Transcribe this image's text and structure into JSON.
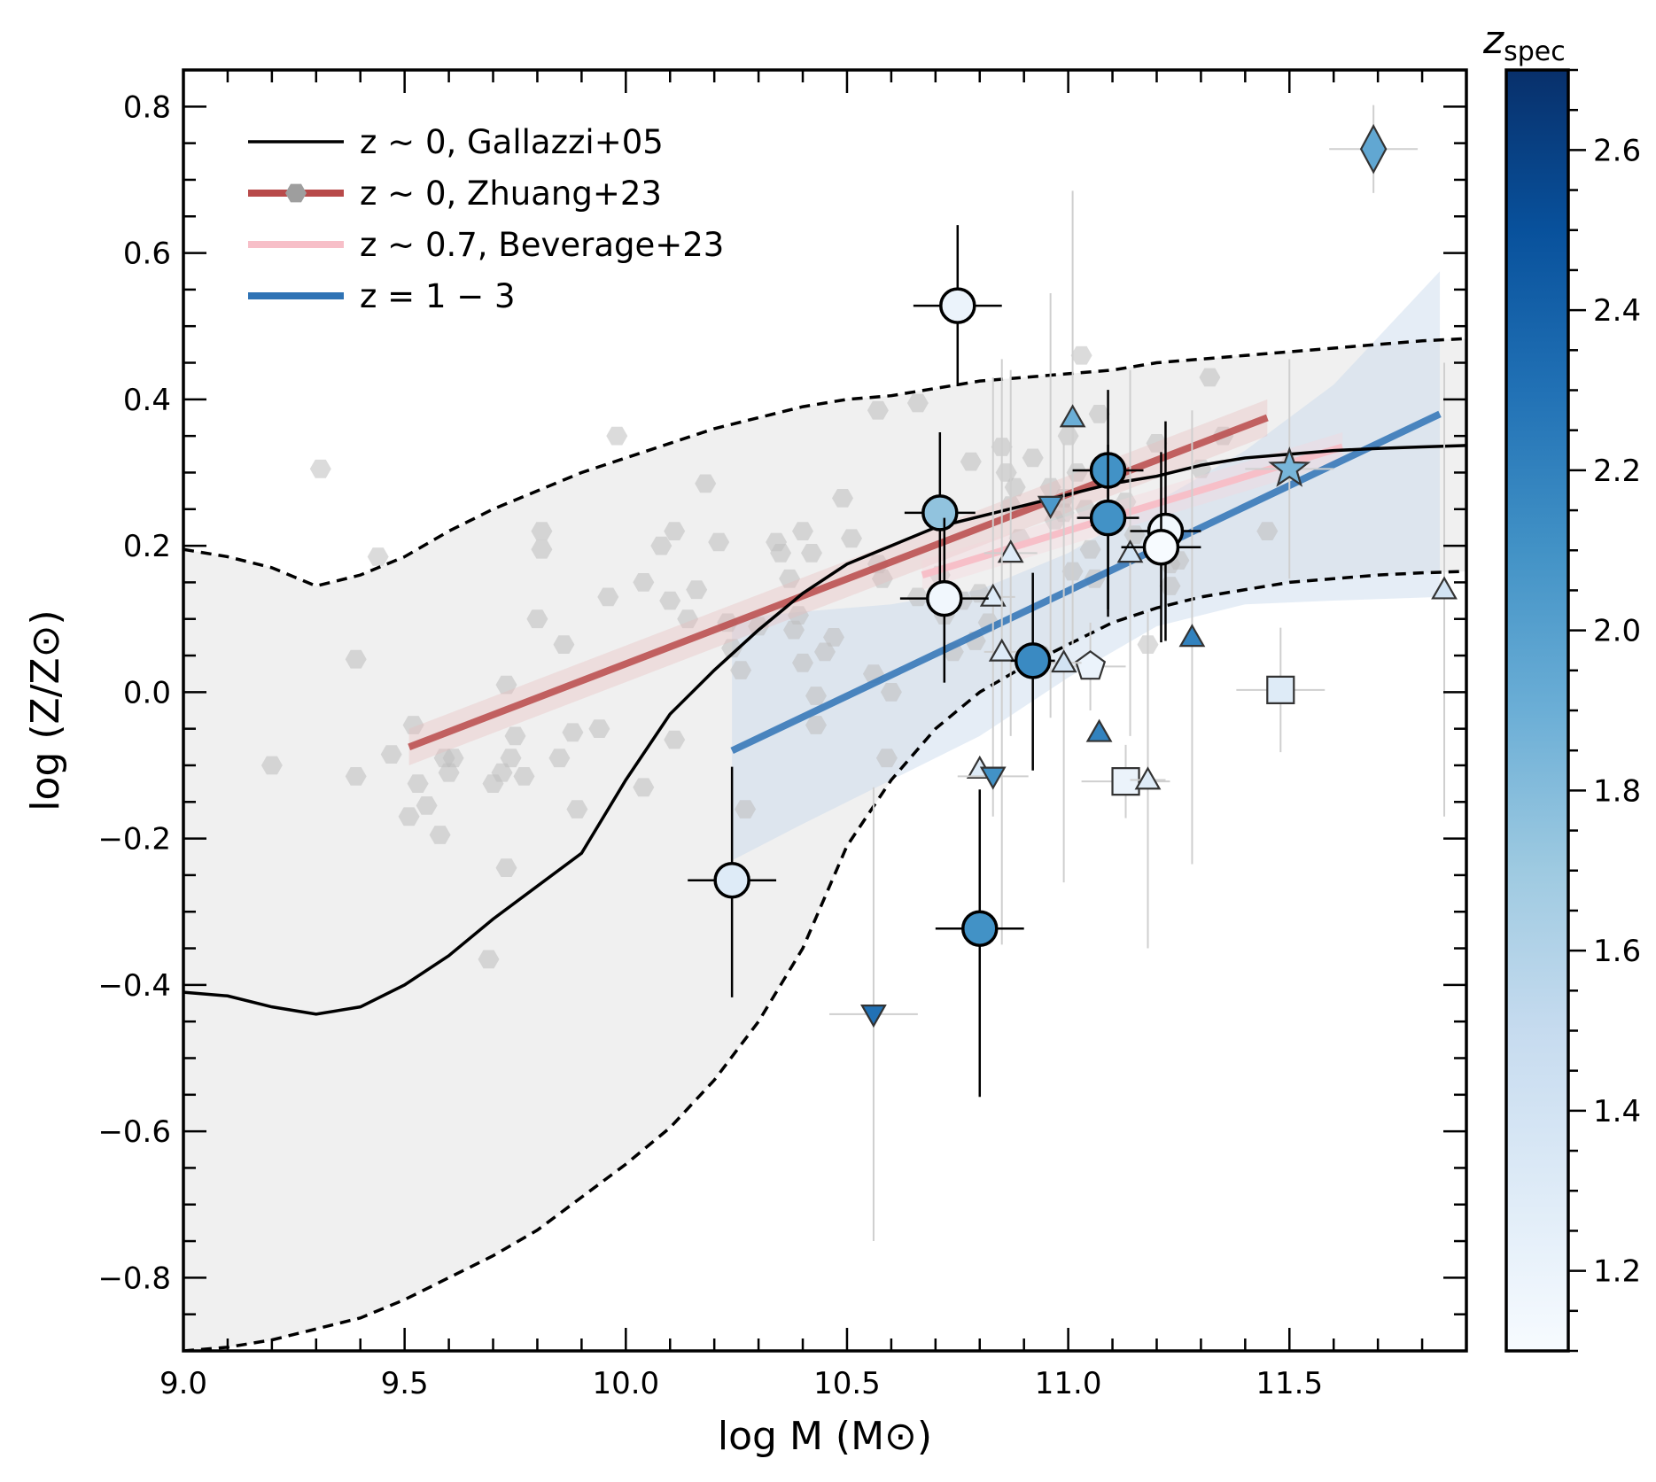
{
  "chart_data": {
    "type": "scatter",
    "title": "",
    "xlabel": "log M (M⊙)",
    "ylabel": "log (Z/Z⊙)",
    "xlim": [
      9.0,
      11.9
    ],
    "ylim": [
      -0.9,
      0.85
    ],
    "xticks": [
      9.0,
      9.5,
      10.0,
      10.5,
      11.0,
      11.5
    ],
    "xtick_labels": [
      "9.0",
      "9.5",
      "10.0",
      "10.5",
      "11.0",
      "11.5"
    ],
    "yticks": [
      -0.8,
      -0.6,
      -0.4,
      -0.2,
      0.0,
      0.2,
      0.4,
      0.6,
      0.8
    ],
    "ytick_labels": [
      "−0.8",
      "−0.6",
      "−0.4",
      "−0.2",
      "0.0",
      "0.2",
      "0.4",
      "0.6",
      "0.8"
    ],
    "grid": false,
    "legend_position": "top-left",
    "legend": [
      {
        "label": "z ~ 0, Gallazzi+05",
        "color": "#000000",
        "style": "line"
      },
      {
        "label": "z ~ 0, Zhuang+23",
        "color": "#b84a4a",
        "style": "line-marker"
      },
      {
        "label": "z ~ 0.7, Beverage+23",
        "color": "#f7bfc8",
        "style": "line"
      },
      {
        "label": "z = 1 − 3",
        "color": "#2f73b5",
        "style": "line"
      }
    ],
    "colorbar": {
      "label": "z_spec",
      "label_main": "z",
      "label_sub": "spec",
      "range": [
        1.1,
        2.7
      ],
      "ticks": [
        1.2,
        1.4,
        1.6,
        1.8,
        2.0,
        2.2,
        2.4,
        2.6
      ],
      "tick_labels": [
        "1.2",
        "1.4",
        "1.6",
        "1.8",
        "2.0",
        "2.2",
        "2.4",
        "2.6"
      ],
      "colors": [
        "#f7fbff",
        "#deebf7",
        "#c6dbef",
        "#9ecae1",
        "#6baed6",
        "#4292c6",
        "#2171b5",
        "#08519c",
        "#08306b"
      ]
    },
    "gallazzi_median": {
      "x": [
        9.0,
        9.1,
        9.2,
        9.3,
        9.4,
        9.5,
        9.6,
        9.7,
        9.8,
        9.9,
        10.0,
        10.1,
        10.2,
        10.3,
        10.4,
        10.5,
        10.6,
        10.7,
        10.8,
        10.9,
        11.0,
        11.1,
        11.2,
        11.3,
        11.4,
        11.5,
        11.6,
        11.7,
        11.8,
        11.9
      ],
      "y": [
        -0.41,
        -0.415,
        -0.43,
        -0.44,
        -0.43,
        -0.4,
        -0.36,
        -0.31,
        -0.265,
        -0.22,
        -0.12,
        -0.03,
        0.03,
        0.085,
        0.135,
        0.175,
        0.2,
        0.225,
        0.24,
        0.255,
        0.27,
        0.285,
        0.295,
        0.31,
        0.32,
        0.325,
        0.33,
        0.333,
        0.335,
        0.337
      ]
    },
    "gallazzi_upper": {
      "x": [
        9.0,
        9.1,
        9.2,
        9.3,
        9.4,
        9.5,
        9.6,
        9.7,
        9.8,
        9.9,
        10.0,
        10.1,
        10.2,
        10.3,
        10.4,
        10.5,
        10.6,
        10.7,
        10.8,
        10.9,
        11.0,
        11.1,
        11.2,
        11.3,
        11.4,
        11.5,
        11.6,
        11.7,
        11.8,
        11.9
      ],
      "y": [
        0.195,
        0.185,
        0.17,
        0.145,
        0.16,
        0.185,
        0.22,
        0.25,
        0.275,
        0.3,
        0.32,
        0.34,
        0.36,
        0.375,
        0.39,
        0.4,
        0.405,
        0.415,
        0.425,
        0.43,
        0.435,
        0.44,
        0.45,
        0.455,
        0.46,
        0.465,
        0.47,
        0.475,
        0.48,
        0.483
      ]
    },
    "gallazzi_lower": {
      "x": [
        9.0,
        9.1,
        9.2,
        9.3,
        9.4,
        9.5,
        9.6,
        9.7,
        9.8,
        9.9,
        10.0,
        10.1,
        10.2,
        10.3,
        10.4,
        10.5,
        10.6,
        10.7,
        10.8,
        10.9,
        11.0,
        11.1,
        11.2,
        11.3,
        11.4,
        11.5,
        11.6,
        11.7,
        11.8,
        11.9
      ],
      "y": [
        -0.9,
        -0.895,
        -0.885,
        -0.87,
        -0.855,
        -0.83,
        -0.8,
        -0.77,
        -0.735,
        -0.69,
        -0.645,
        -0.595,
        -0.53,
        -0.45,
        -0.35,
        -0.21,
        -0.12,
        -0.05,
        0.0,
        0.035,
        0.065,
        0.095,
        0.115,
        0.13,
        0.14,
        0.15,
        0.155,
        0.16,
        0.163,
        0.165
      ]
    },
    "zhuang_line": {
      "x": [
        9.51,
        11.45
      ],
      "y": [
        -0.075,
        0.375
      ],
      "band": 0.025
    },
    "beverage_line": {
      "x": [
        10.67,
        11.62
      ],
      "y": [
        0.16,
        0.335
      ],
      "band": 0.02
    },
    "fit_line": {
      "x": [
        10.24,
        11.84
      ],
      "y": [
        -0.08,
        0.38
      ]
    },
    "fit_band": {
      "x": [
        10.24,
        10.4,
        10.6,
        10.8,
        11.0,
        11.2,
        11.4,
        11.6,
        11.84
      ],
      "upper": [
        0.1,
        0.11,
        0.12,
        0.14,
        0.19,
        0.26,
        0.33,
        0.42,
        0.575
      ],
      "lower": [
        -0.23,
        -0.18,
        -0.12,
        -0.06,
        0.02,
        0.09,
        0.12,
        0.125,
        0.13
      ]
    },
    "gray_points": [
      [
        9.31,
        0.305
      ],
      [
        9.2,
        -0.1
      ],
      [
        9.39,
        0.045
      ],
      [
        9.39,
        -0.115
      ],
      [
        9.44,
        0.185
      ],
      [
        9.47,
        -0.085
      ],
      [
        9.52,
        -0.045
      ],
      [
        9.53,
        -0.125
      ],
      [
        9.55,
        -0.155
      ],
      [
        9.51,
        -0.17
      ],
      [
        9.59,
        -0.09
      ],
      [
        9.6,
        -0.11
      ],
      [
        9.61,
        -0.09
      ],
      [
        9.58,
        -0.195
      ],
      [
        9.69,
        -0.365
      ],
      [
        9.7,
        -0.125
      ],
      [
        9.72,
        -0.11
      ],
      [
        9.74,
        -0.09
      ],
      [
        9.75,
        -0.06
      ],
      [
        9.73,
        0.01
      ],
      [
        9.77,
        -0.115
      ],
      [
        9.73,
        -0.24
      ],
      [
        9.8,
        0.1
      ],
      [
        9.81,
        0.22
      ],
      [
        9.81,
        0.195
      ],
      [
        9.86,
        0.065
      ],
      [
        9.85,
        -0.09
      ],
      [
        9.88,
        -0.055
      ],
      [
        9.89,
        -0.16
      ],
      [
        9.94,
        -0.05
      ],
      [
        9.96,
        0.13
      ],
      [
        9.98,
        0.35
      ],
      [
        10.04,
        -0.13
      ],
      [
        10.04,
        0.15
      ],
      [
        10.08,
        0.2
      ],
      [
        10.11,
        0.22
      ],
      [
        10.11,
        -0.065
      ],
      [
        10.1,
        0.125
      ],
      [
        10.14,
        0.1
      ],
      [
        10.16,
        0.14
      ],
      [
        10.18,
        0.285
      ],
      [
        10.21,
        0.205
      ],
      [
        10.23,
        0.095
      ],
      [
        10.24,
        0.06
      ],
      [
        10.26,
        0.03
      ],
      [
        10.27,
        -0.16
      ],
      [
        10.3,
        0.09
      ],
      [
        10.34,
        0.205
      ],
      [
        10.35,
        0.19
      ],
      [
        10.37,
        0.155
      ],
      [
        10.38,
        0.085
      ],
      [
        10.39,
        0.105
      ],
      [
        10.4,
        0.04
      ],
      [
        10.4,
        0.22
      ],
      [
        10.42,
        0.19
      ],
      [
        10.43,
        -0.005
      ],
      [
        10.43,
        -0.045
      ],
      [
        10.45,
        0.055
      ],
      [
        10.47,
        0.075
      ],
      [
        10.49,
        0.265
      ],
      [
        10.51,
        0.21
      ],
      [
        10.56,
        0.025
      ],
      [
        10.57,
        0.385
      ],
      [
        10.57,
        0.175
      ],
      [
        10.58,
        0.155
      ],
      [
        10.59,
        -0.09
      ],
      [
        10.6,
        0.0
      ],
      [
        10.66,
        0.13
      ],
      [
        10.66,
        0.395
      ],
      [
        10.71,
        0.16
      ],
      [
        10.72,
        0.105
      ],
      [
        10.72,
        0.14
      ],
      [
        10.74,
        0.055
      ],
      [
        10.76,
        0.125
      ],
      [
        10.78,
        0.315
      ],
      [
        10.79,
        0.07
      ],
      [
        10.8,
        0.135
      ],
      [
        10.82,
        0.095
      ],
      [
        10.85,
        0.335
      ],
      [
        10.86,
        0.3
      ],
      [
        10.87,
        0.255
      ],
      [
        10.88,
        0.28
      ],
      [
        10.89,
        0.21
      ],
      [
        10.92,
        0.32
      ],
      [
        10.94,
        0.05
      ],
      [
        10.96,
        0.28
      ],
      [
        10.97,
        0.235
      ],
      [
        10.99,
        0.265
      ],
      [
        10.99,
        0.245
      ],
      [
        11.0,
        0.35
      ],
      [
        11.01,
        0.165
      ],
      [
        11.02,
        0.3
      ],
      [
        11.03,
        0.46
      ],
      [
        11.04,
        0.25
      ],
      [
        11.05,
        0.195
      ],
      [
        11.06,
        0.155
      ],
      [
        11.07,
        0.38
      ],
      [
        11.1,
        0.3
      ],
      [
        11.12,
        0.3
      ],
      [
        11.13,
        0.26
      ],
      [
        11.15,
        0.215
      ],
      [
        11.18,
        0.065
      ],
      [
        11.2,
        0.34
      ],
      [
        11.23,
        0.175
      ],
      [
        11.23,
        0.145
      ],
      [
        11.25,
        0.18
      ],
      [
        11.3,
        0.305
      ],
      [
        11.32,
        0.43
      ],
      [
        11.35,
        0.35
      ],
      [
        11.45,
        0.22
      ],
      [
        11.5,
        0.31
      ]
    ],
    "error_points": [
      {
        "x": 10.75,
        "y": 0.528,
        "xerr": 0.1,
        "yerr": [
          0.11,
          0.11
        ],
        "z": 1.2
      },
      {
        "x": 10.71,
        "y": 0.245,
        "xerr": 0.08,
        "yerr": [
          0.11,
          0.11
        ],
        "z": 1.75
      },
      {
        "x": 10.72,
        "y": 0.128,
        "xerr": 0.1,
        "yerr": [
          0.115,
          0.11
        ],
        "z": 1.15
      },
      {
        "x": 10.24,
        "y": -0.257,
        "xerr": 0.1,
        "yerr": [
          0.16,
          0.155
        ],
        "z": 1.3
      },
      {
        "x": 10.8,
        "y": -0.323,
        "xerr": 0.1,
        "yerr": [
          0.23,
          0.19
        ],
        "z": 2.1
      },
      {
        "x": 10.92,
        "y": 0.043,
        "xerr": 0.05,
        "yerr": [
          0.15,
          0.12
        ],
        "z": 2.15
      },
      {
        "x": 11.09,
        "y": 0.303,
        "xerr": 0.08,
        "yerr": [
          0.19,
          0.11
        ],
        "z": 2.1
      },
      {
        "x": 11.09,
        "y": 0.238,
        "xerr": 0.07,
        "yerr": [
          0.135,
          0.1
        ],
        "z": 2.1
      },
      {
        "x": 11.22,
        "y": 0.22,
        "xerr": 0.08,
        "yerr": [
          0.15,
          0.15
        ],
        "z": 1.15
      },
      {
        "x": 11.21,
        "y": 0.198,
        "xerr": 0.09,
        "yerr": [
          0.13,
          0.13
        ],
        "z": 1.1
      }
    ],
    "other_markers": [
      {
        "shape": "diamond",
        "x": 11.69,
        "y": 0.742,
        "z": 1.95,
        "xerr": 0.1,
        "yerr": 0.06
      },
      {
        "shape": "star",
        "x": 11.5,
        "y": 0.305,
        "z": 1.85,
        "xerr": 0.1,
        "yerr": 0.15
      },
      {
        "shape": "square",
        "x": 11.48,
        "y": 0.003,
        "z": 1.3,
        "xerr": 0.1,
        "yerr": 0.085
      },
      {
        "shape": "square",
        "x": 11.13,
        "y": -0.122,
        "z": 1.2,
        "xerr": 0.1,
        "yerr": 0.05
      },
      {
        "shape": "pentagon",
        "x": 11.05,
        "y": 0.035,
        "z": 1.2,
        "xerr": 0.08,
        "yerr": 0.06
      },
      {
        "shape": "tri-up",
        "x": 11.01,
        "y": 0.375,
        "z": 1.9,
        "xerr": 0.0,
        "yerr": 0.31
      },
      {
        "shape": "tri-up",
        "x": 10.87,
        "y": 0.19,
        "z": 1.3,
        "xerr": 0.06,
        "yerr": 0.25
      },
      {
        "shape": "tri-up",
        "x": 10.83,
        "y": 0.13,
        "z": 1.3,
        "xerr": 0.05,
        "yerr": 0.3
      },
      {
        "shape": "tri-up",
        "x": 10.85,
        "y": 0.055,
        "z": 1.3,
        "xerr": 0.04,
        "yerr": 0.4
      },
      {
        "shape": "tri-up",
        "x": 10.99,
        "y": 0.04,
        "z": 1.4,
        "xerr": 0.04,
        "yerr": 0.3
      },
      {
        "shape": "tri-up",
        "x": 11.07,
        "y": -0.055,
        "z": 2.2,
        "xerr": 0.0,
        "yerr": 0.0
      },
      {
        "shape": "tri-up",
        "x": 11.28,
        "y": 0.075,
        "z": 2.2,
        "xerr": 0.0,
        "yerr": 0.31
      },
      {
        "shape": "tri-up",
        "x": 11.14,
        "y": 0.19,
        "z": 1.4,
        "xerr": 0.0,
        "yerr": 0.25
      },
      {
        "shape": "tri-up",
        "x": 11.08,
        "y": 0.24,
        "z": 2.0,
        "xerr": 0.0,
        "yerr": 0.0
      },
      {
        "shape": "tri-up",
        "x": 11.18,
        "y": -0.12,
        "z": 1.3,
        "xerr": 0.04,
        "yerr": 0.23
      },
      {
        "shape": "tri-up",
        "x": 11.85,
        "y": 0.14,
        "z": 1.4,
        "xerr": 0.0,
        "yerr": 0.31
      },
      {
        "shape": "tri-up",
        "x": 10.8,
        "y": -0.105,
        "z": 1.3,
        "xerr": 0.0,
        "yerr": 0.0
      },
      {
        "shape": "tri-down",
        "x": 10.96,
        "y": 0.255,
        "z": 2.05,
        "xerr": 0.0,
        "yerr": 0.29
      },
      {
        "shape": "tri-down",
        "x": 10.83,
        "y": -0.115,
        "z": 2.1,
        "xerr": 0.08,
        "yerr": 0.0
      },
      {
        "shape": "tri-down",
        "x": 10.56,
        "y": -0.44,
        "z": 2.3,
        "xerr": 0.1,
        "yerr": 0.31
      }
    ]
  }
}
